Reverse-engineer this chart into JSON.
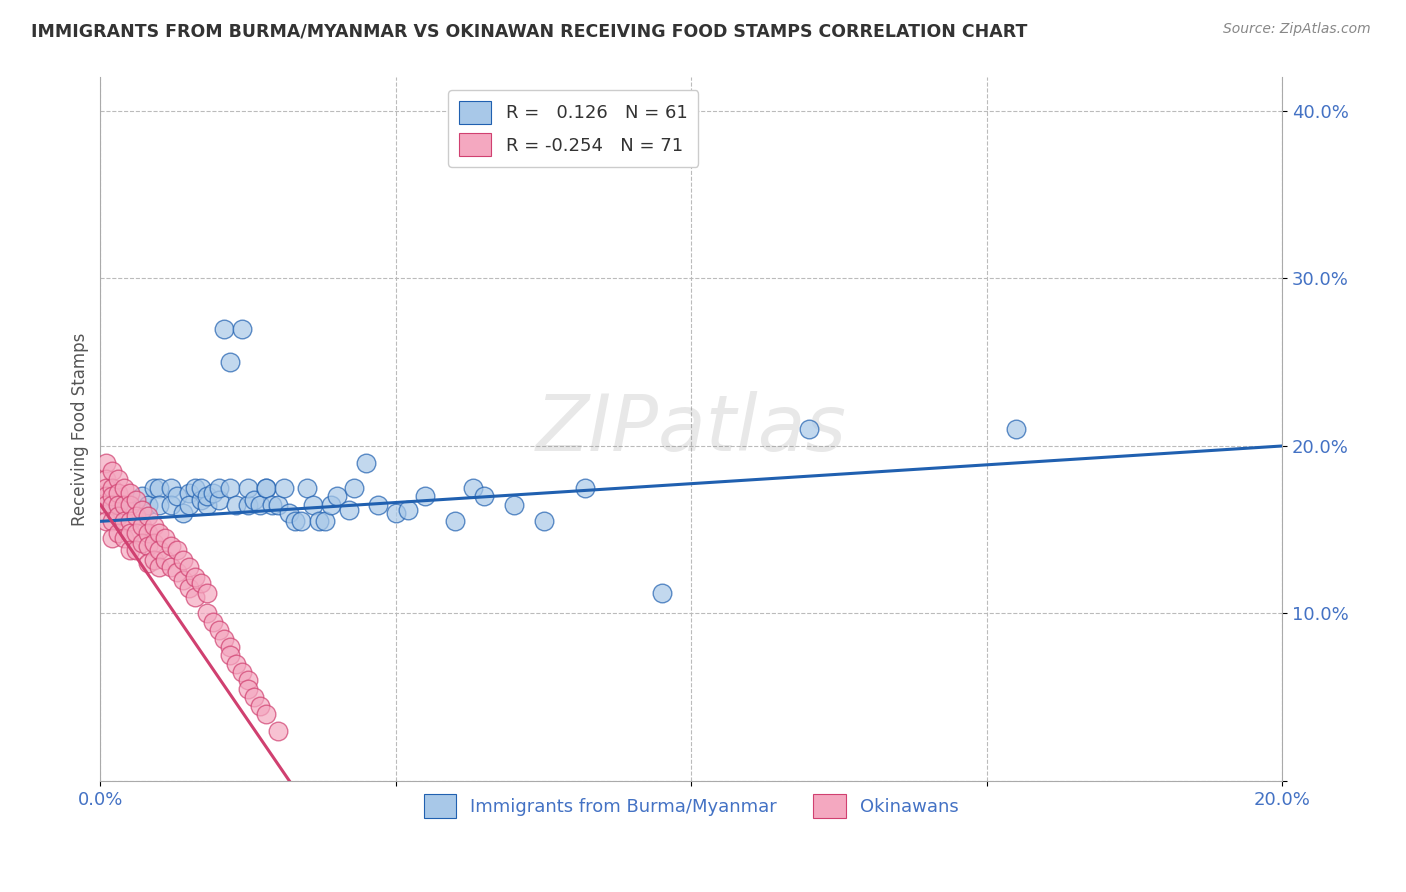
{
  "title": "IMMIGRANTS FROM BURMA/MYANMAR VS OKINAWAN RECEIVING FOOD STAMPS CORRELATION CHART",
  "source": "Source: ZipAtlas.com",
  "xlabel_blue": "Immigrants from Burma/Myanmar",
  "xlabel_pink": "Okinawans",
  "ylabel": "Receiving Food Stamps",
  "xlim": [
    0.0,
    0.2
  ],
  "ylim": [
    0.0,
    0.42
  ],
  "blue_color": "#a8c8e8",
  "pink_color": "#f4a8c0",
  "blue_line_color": "#2060b0",
  "pink_line_color": "#d04070",
  "background_color": "#ffffff",
  "watermark": "ZIPatlas",
  "blue_scatter_x": [
    0.002,
    0.003,
    0.005,
    0.007,
    0.008,
    0.009,
    0.01,
    0.01,
    0.012,
    0.012,
    0.013,
    0.014,
    0.015,
    0.015,
    0.016,
    0.017,
    0.017,
    0.018,
    0.018,
    0.019,
    0.02,
    0.02,
    0.021,
    0.022,
    0.022,
    0.023,
    0.024,
    0.025,
    0.025,
    0.026,
    0.027,
    0.028,
    0.028,
    0.029,
    0.03,
    0.031,
    0.032,
    0.033,
    0.034,
    0.035,
    0.036,
    0.037,
    0.038,
    0.039,
    0.04,
    0.042,
    0.043,
    0.045,
    0.047,
    0.05,
    0.052,
    0.055,
    0.06,
    0.063,
    0.065,
    0.07,
    0.075,
    0.082,
    0.095,
    0.12,
    0.155
  ],
  "blue_scatter_y": [
    0.165,
    0.165,
    0.165,
    0.17,
    0.165,
    0.175,
    0.175,
    0.165,
    0.175,
    0.165,
    0.17,
    0.16,
    0.172,
    0.165,
    0.175,
    0.168,
    0.175,
    0.165,
    0.17,
    0.172,
    0.168,
    0.175,
    0.27,
    0.25,
    0.175,
    0.165,
    0.27,
    0.165,
    0.175,
    0.168,
    0.165,
    0.175,
    0.175,
    0.165,
    0.165,
    0.175,
    0.16,
    0.155,
    0.155,
    0.175,
    0.165,
    0.155,
    0.155,
    0.165,
    0.17,
    0.162,
    0.175,
    0.19,
    0.165,
    0.16,
    0.162,
    0.17,
    0.155,
    0.175,
    0.17,
    0.165,
    0.155,
    0.175,
    0.112,
    0.21,
    0.21
  ],
  "pink_scatter_x": [
    0.001,
    0.001,
    0.001,
    0.001,
    0.001,
    0.001,
    0.002,
    0.002,
    0.002,
    0.002,
    0.002,
    0.002,
    0.003,
    0.003,
    0.003,
    0.003,
    0.003,
    0.004,
    0.004,
    0.004,
    0.004,
    0.005,
    0.005,
    0.005,
    0.005,
    0.005,
    0.006,
    0.006,
    0.006,
    0.006,
    0.007,
    0.007,
    0.007,
    0.008,
    0.008,
    0.008,
    0.008,
    0.009,
    0.009,
    0.009,
    0.01,
    0.01,
    0.01,
    0.011,
    0.011,
    0.012,
    0.012,
    0.013,
    0.013,
    0.014,
    0.014,
    0.015,
    0.015,
    0.016,
    0.016,
    0.017,
    0.018,
    0.018,
    0.019,
    0.02,
    0.021,
    0.022,
    0.022,
    0.023,
    0.024,
    0.025,
    0.025,
    0.026,
    0.027,
    0.028,
    0.03
  ],
  "pink_scatter_y": [
    0.19,
    0.18,
    0.175,
    0.17,
    0.165,
    0.155,
    0.185,
    0.175,
    0.17,
    0.165,
    0.155,
    0.145,
    0.18,
    0.172,
    0.165,
    0.158,
    0.148,
    0.175,
    0.165,
    0.155,
    0.145,
    0.172,
    0.165,
    0.155,
    0.148,
    0.138,
    0.168,
    0.158,
    0.148,
    0.138,
    0.162,
    0.152,
    0.142,
    0.158,
    0.148,
    0.14,
    0.13,
    0.152,
    0.142,
    0.132,
    0.148,
    0.138,
    0.128,
    0.145,
    0.132,
    0.14,
    0.128,
    0.138,
    0.125,
    0.132,
    0.12,
    0.128,
    0.115,
    0.122,
    0.11,
    0.118,
    0.112,
    0.1,
    0.095,
    0.09,
    0.085,
    0.08,
    0.075,
    0.07,
    0.065,
    0.06,
    0.055,
    0.05,
    0.045,
    0.04,
    0.03
  ]
}
